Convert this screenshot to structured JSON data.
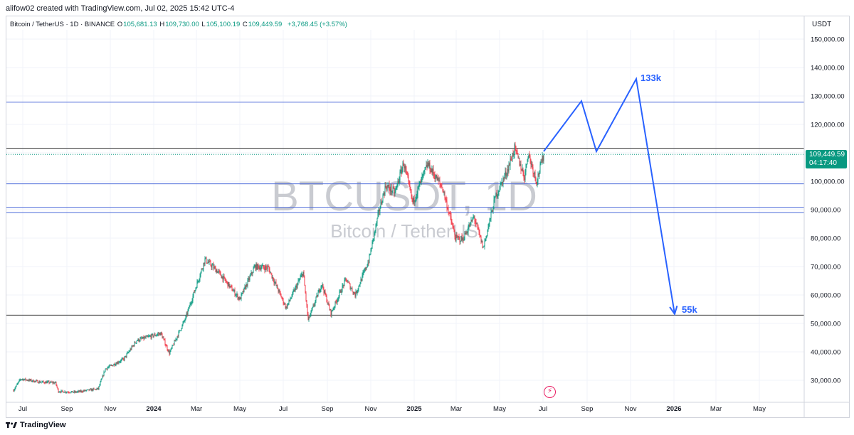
{
  "credit": "alifow02 created with TradingView.com, Jul 02, 2025 15:42 UTC-4",
  "symbol": {
    "name": "Bitcoin / TetherUS · 1D · BINANCE",
    "open_label": "O",
    "open": "105,681.13",
    "high_label": "H",
    "high": "109,730.00",
    "low_label": "L",
    "low": "105,100.19",
    "close_label": "C",
    "close": "109,449.59",
    "change": "+3,768.45 (+3.57%)"
  },
  "currency": "USDT",
  "watermark": {
    "ticker": "BTCUSDT, 1D",
    "description": "Bitcoin / TetherUS"
  },
  "price_tag": {
    "price": "109,449.59",
    "countdown": "04:17:40"
  },
  "brand": "TradingView",
  "colors": {
    "up": "#089981",
    "down": "#f23645",
    "projection": "#2962ff",
    "hline_blue": "#4a68d9",
    "hline_dark": "#333333",
    "grid": "#f0f3fa",
    "text": "#131722",
    "accent_alert": "#e91e63"
  },
  "chart_data": {
    "type": "candlestick",
    "y_axis": {
      "min": 22500,
      "max": 158000,
      "ticks": [
        30000,
        40000,
        50000,
        60000,
        70000,
        80000,
        90000,
        100000,
        110000,
        120000,
        130000,
        140000,
        150000
      ],
      "tick_labels": [
        "30,000.00",
        "40,000.00",
        "50,000.00",
        "60,000.00",
        "70,000.00",
        "80,000.00",
        "90,000.00",
        "100,000.00",
        "110,000.00",
        "120,000.00",
        "130,000.00",
        "140,000.00",
        "150,000.00"
      ]
    },
    "x_axis": {
      "start": "2023-06-18",
      "end": "2026-06-05",
      "ticks": [
        {
          "date": "2023-07-01",
          "label": "Jul",
          "bold": false
        },
        {
          "date": "2023-09-01",
          "label": "Sep",
          "bold": false
        },
        {
          "date": "2023-11-01",
          "label": "Nov",
          "bold": false
        },
        {
          "date": "2024-01-01",
          "label": "2024",
          "bold": true
        },
        {
          "date": "2024-03-01",
          "label": "Mar",
          "bold": false
        },
        {
          "date": "2024-05-01",
          "label": "May",
          "bold": false
        },
        {
          "date": "2024-07-01",
          "label": "Jul",
          "bold": false
        },
        {
          "date": "2024-09-01",
          "label": "Sep",
          "bold": false
        },
        {
          "date": "2024-11-01",
          "label": "Nov",
          "bold": false
        },
        {
          "date": "2025-01-01",
          "label": "2025",
          "bold": true
        },
        {
          "date": "2025-03-01",
          "label": "Mar",
          "bold": false
        },
        {
          "date": "2025-05-01",
          "label": "May",
          "bold": false
        },
        {
          "date": "2025-07-01",
          "label": "Jul",
          "bold": false
        },
        {
          "date": "2025-09-01",
          "label": "Sep",
          "bold": false
        },
        {
          "date": "2025-11-01",
          "label": "Nov",
          "bold": false
        },
        {
          "date": "2026-01-01",
          "label": "2026",
          "bold": true
        },
        {
          "date": "2026-03-01",
          "label": "Mar",
          "bold": false
        },
        {
          "date": "2026-05-01",
          "label": "May",
          "bold": false
        }
      ]
    },
    "price_path": [
      {
        "date": "2023-06-18",
        "price": 26500
      },
      {
        "date": "2023-06-28",
        "price": 30500
      },
      {
        "date": "2023-07-25",
        "price": 29400
      },
      {
        "date": "2023-08-16",
        "price": 29100
      },
      {
        "date": "2023-08-20",
        "price": 26100
      },
      {
        "date": "2023-09-12",
        "price": 25800
      },
      {
        "date": "2023-10-15",
        "price": 27000
      },
      {
        "date": "2023-10-25",
        "price": 34000
      },
      {
        "date": "2023-11-20",
        "price": 37500
      },
      {
        "date": "2023-12-08",
        "price": 44000
      },
      {
        "date": "2024-01-11",
        "price": 46500
      },
      {
        "date": "2024-01-23",
        "price": 39500
      },
      {
        "date": "2024-02-15",
        "price": 52000
      },
      {
        "date": "2024-03-13",
        "price": 72500
      },
      {
        "date": "2024-04-01",
        "price": 68000
      },
      {
        "date": "2024-05-01",
        "price": 58500
      },
      {
        "date": "2024-05-22",
        "price": 70000
      },
      {
        "date": "2024-06-10",
        "price": 69500
      },
      {
        "date": "2024-07-05",
        "price": 55500
      },
      {
        "date": "2024-07-29",
        "price": 68000
      },
      {
        "date": "2024-08-05",
        "price": 51000
      },
      {
        "date": "2024-08-24",
        "price": 64000
      },
      {
        "date": "2024-09-06",
        "price": 53500
      },
      {
        "date": "2024-09-27",
        "price": 65500
      },
      {
        "date": "2024-10-10",
        "price": 60000
      },
      {
        "date": "2024-10-29",
        "price": 72000
      },
      {
        "date": "2024-11-13",
        "price": 90000
      },
      {
        "date": "2024-11-22",
        "price": 98500
      },
      {
        "date": "2024-12-05",
        "price": 96000
      },
      {
        "date": "2024-12-17",
        "price": 106500
      },
      {
        "date": "2024-12-30",
        "price": 92500
      },
      {
        "date": "2025-01-20",
        "price": 106000
      },
      {
        "date": "2025-02-10",
        "price": 97500
      },
      {
        "date": "2025-02-28",
        "price": 80000
      },
      {
        "date": "2025-03-10",
        "price": 79500
      },
      {
        "date": "2025-03-26",
        "price": 87500
      },
      {
        "date": "2025-04-08",
        "price": 76500
      },
      {
        "date": "2025-04-25",
        "price": 94500
      },
      {
        "date": "2025-05-12",
        "price": 104000
      },
      {
        "date": "2025-05-22",
        "price": 111500
      },
      {
        "date": "2025-06-05",
        "price": 101500
      },
      {
        "date": "2025-06-10",
        "price": 110000
      },
      {
        "date": "2025-06-22",
        "price": 100000
      },
      {
        "date": "2025-07-02",
        "price": 109450
      }
    ],
    "horizontal_levels": [
      {
        "price": 127800,
        "color": "blue"
      },
      {
        "price": 111600,
        "color": "dark"
      },
      {
        "price": 99100,
        "color": "blue"
      },
      {
        "price": 90800,
        "color": "blue"
      },
      {
        "price": 89000,
        "color": "blue"
      },
      {
        "price": 52900,
        "color": "dark"
      }
    ],
    "current_price": 109449.59,
    "projection": {
      "points": [
        {
          "date": "2025-07-02",
          "price": 110500
        },
        {
          "date": "2025-08-24",
          "price": 128200
        },
        {
          "date": "2025-09-14",
          "price": 110500
        },
        {
          "date": "2025-11-09",
          "price": 136000
        },
        {
          "date": "2026-01-02",
          "price": 53300
        }
      ],
      "labels": [
        {
          "text": "133k",
          "date": "2025-11-15",
          "price": 136500
        },
        {
          "text": "55k",
          "date": "2026-01-12",
          "price": 55000
        }
      ]
    }
  }
}
